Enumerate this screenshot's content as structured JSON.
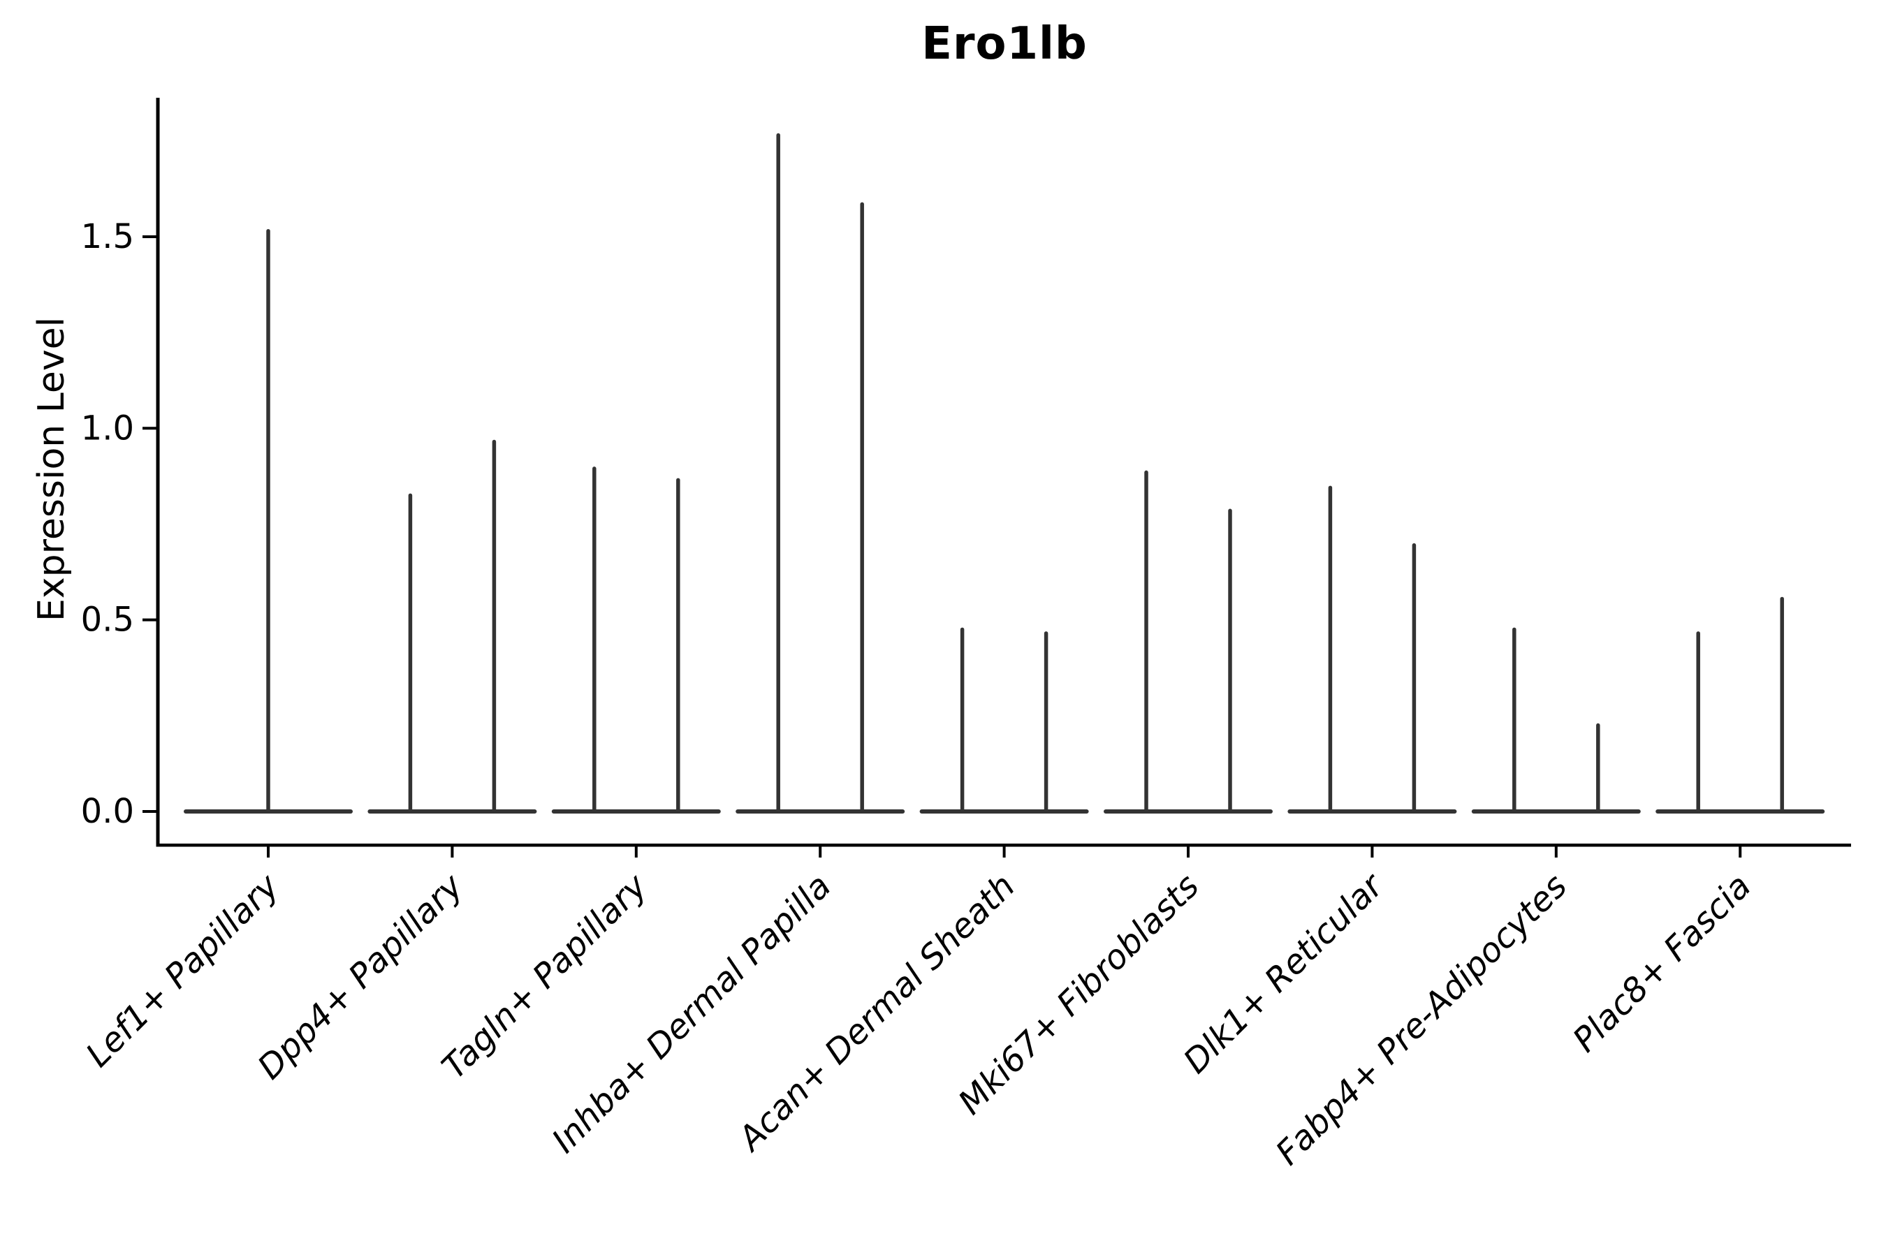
{
  "chart_data": {
    "type": "violin",
    "title": "Ero1lb",
    "ylabel": "Expression Level",
    "xlabel": "",
    "grid": false,
    "legend": "none",
    "y_ticks": [
      0.0,
      0.5,
      1.0,
      1.5
    ],
    "ylim": [
      -0.09,
      1.86
    ],
    "categories": [
      "Lef1+ Papillary",
      "Dpp4+ Papillary",
      "Tagln+ Papillary",
      "Inhba+ Dermal Papilla",
      "Acan+ Dermal Sheath",
      "Mki67+ Fibroblasts",
      "Dlk1+ Reticular",
      "Fabp4+ Pre-Adipocytes",
      "Plac8+ Fascia"
    ],
    "violins": [
      {
        "category": "Lef1+ Papillary",
        "spike_maxima": [
          1.52
        ]
      },
      {
        "category": "Dpp4+ Papillary",
        "spike_maxima": [
          0.83,
          0.97
        ]
      },
      {
        "category": "Tagln+ Papillary",
        "spike_maxima": [
          0.9,
          0.87
        ]
      },
      {
        "category": "Inhba+ Dermal Papilla",
        "spike_maxima": [
          1.77,
          1.59
        ]
      },
      {
        "category": "Acan+ Dermal Sheath",
        "spike_maxima": [
          0.48,
          0.47
        ]
      },
      {
        "category": "Mki67+ Fibroblasts",
        "spike_maxima": [
          0.89,
          0.79
        ]
      },
      {
        "category": "Dlk1+ Reticular",
        "spike_maxima": [
          0.85,
          0.7
        ]
      },
      {
        "category": "Fabp4+ Pre-Adipocytes",
        "spike_maxima": [
          0.48,
          0.23
        ]
      },
      {
        "category": "Plac8+ Fascia",
        "spike_maxima": [
          0.47,
          0.56
        ]
      }
    ],
    "colors": {
      "violin": "#333333",
      "axis": "#000000",
      "text": "#000000",
      "background": "#ffffff"
    }
  }
}
